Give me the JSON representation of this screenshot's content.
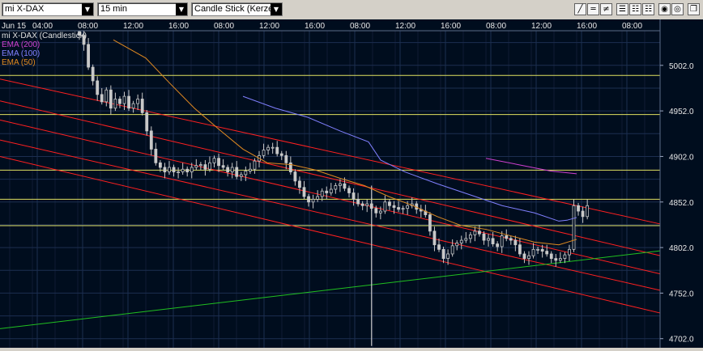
{
  "toolbar": {
    "symbol": "mi X-DAX",
    "interval": "15 min",
    "chart_style": "Candle Stick (Kerze",
    "icons": [
      "line-tool-icon",
      "horizontal-line-icon",
      "channel-tool-icon",
      "fibonacci-icon",
      "grid-icon",
      "grid-alt-icon",
      "grid-dense-icon",
      "zoom-in-icon",
      "zoom-out-icon",
      "maximize-icon"
    ]
  },
  "legend": {
    "title": "mi X-DAX (Candlestick)",
    "items": [
      {
        "label": "EMA (200)",
        "color": "#d040d0"
      },
      {
        "label": "EMA (100)",
        "color": "#8080ff"
      },
      {
        "label": "EMA (50)",
        "color": "#e08a20"
      }
    ]
  },
  "chart_data": {
    "type": "candlestick",
    "x_tick_labels": [
      "Jun 15",
      "04:00",
      "08:00",
      "12:00",
      "16:00",
      "08:00",
      "12:00",
      "16:00",
      "08:00",
      "12:00",
      "16:00",
      "08:00",
      "12:00",
      "16:00",
      "08:00"
    ],
    "y_tick_labels": [
      "5002.0",
      "4952.0",
      "4902.0",
      "4852.0",
      "4802.0",
      "4752.0",
      "4702.0"
    ],
    "ylim": [
      4692,
      5040
    ],
    "grid": true,
    "colors": {
      "background": "#000d1e",
      "grid": "#1c2e50",
      "candles": "#c8c8c8",
      "horizontal_levels": "#e0e060",
      "channel_lines": "#ff2020",
      "trendline": "#20c020"
    },
    "horizontal_levels": [
      4991,
      4948,
      4887,
      4855,
      4826
    ],
    "channel_lines": [
      {
        "x1": 0,
        "y1": 4987,
        "x2": 830,
        "y2": 4825
      },
      {
        "x1": 0,
        "y1": 4963,
        "x2": 830,
        "y2": 4790
      },
      {
        "x1": 0,
        "y1": 4942,
        "x2": 830,
        "y2": 4770
      },
      {
        "x1": 0,
        "y1": 4920,
        "x2": 830,
        "y2": 4752
      },
      {
        "x1": 0,
        "y1": 4902,
        "x2": 830,
        "y2": 4727
      }
    ],
    "trendline": {
      "x1": 0,
      "y1": 4713,
      "x2": 830,
      "y2": 4800
    },
    "ema200": [
      [
        600,
        4900
      ],
      [
        640,
        4893
      ],
      [
        680,
        4886
      ],
      [
        712,
        4883
      ]
    ],
    "ema100": [
      [
        300,
        4968
      ],
      [
        340,
        4955
      ],
      [
        380,
        4945
      ],
      [
        420,
        4930
      ],
      [
        455,
        4918
      ],
      [
        470,
        4898
      ],
      [
        500,
        4885
      ],
      [
        540,
        4872
      ],
      [
        580,
        4860
      ],
      [
        620,
        4848
      ],
      [
        660,
        4840
      ],
      [
        690,
        4831
      ],
      [
        700,
        4832
      ],
      [
        712,
        4835
      ]
    ],
    "ema50": [
      [
        140,
        5030
      ],
      [
        180,
        5010
      ],
      [
        210,
        4982
      ],
      [
        240,
        4955
      ],
      [
        270,
        4932
      ],
      [
        300,
        4910
      ],
      [
        330,
        4895
      ],
      [
        360,
        4893
      ],
      [
        390,
        4887
      ],
      [
        420,
        4878
      ],
      [
        450,
        4870
      ],
      [
        480,
        4858
      ],
      [
        510,
        4848
      ],
      [
        540,
        4836
      ],
      [
        570,
        4826
      ],
      [
        600,
        4822
      ],
      [
        630,
        4815
      ],
      [
        660,
        4808
      ],
      [
        690,
        4805
      ],
      [
        712,
        4811
      ]
    ],
    "closes": [
      5035,
      5025,
      5000,
      4985,
      4970,
      4962,
      4975,
      4955,
      4965,
      4960,
      4968,
      4955,
      4960,
      4965,
      4950,
      4930,
      4910,
      4895,
      4890,
      4885,
      4890,
      4885,
      4885,
      4888,
      4885,
      4890,
      4892,
      4893,
      4888,
      4895,
      4900,
      4892,
      4890,
      4885,
      4890,
      4880,
      4882,
      4886,
      4888,
      4897,
      4903,
      4909,
      4912,
      4912,
      4905,
      4903,
      4895,
      4885,
      4875,
      4868,
      4858,
      4852,
      4855,
      4858,
      4864,
      4862,
      4866,
      4870,
      4872,
      4867,
      4862,
      4855,
      4850,
      4848,
      4850,
      4845,
      4840,
      4842,
      4852,
      4848,
      4846,
      4844,
      4845,
      4848,
      4850,
      4844,
      4842,
      4838,
      4820,
      4805,
      4800,
      4790,
      4795,
      4804,
      4807,
      4810,
      4812,
      4816,
      4820,
      4817,
      4810,
      4812,
      4806,
      4803,
      4815,
      4812,
      4810,
      4805,
      4795,
      4790,
      4793,
      4800,
      4800,
      4798,
      4795,
      4790,
      4788,
      4790,
      4794,
      4800,
      4848,
      4842,
      4836,
      4848
    ]
  }
}
